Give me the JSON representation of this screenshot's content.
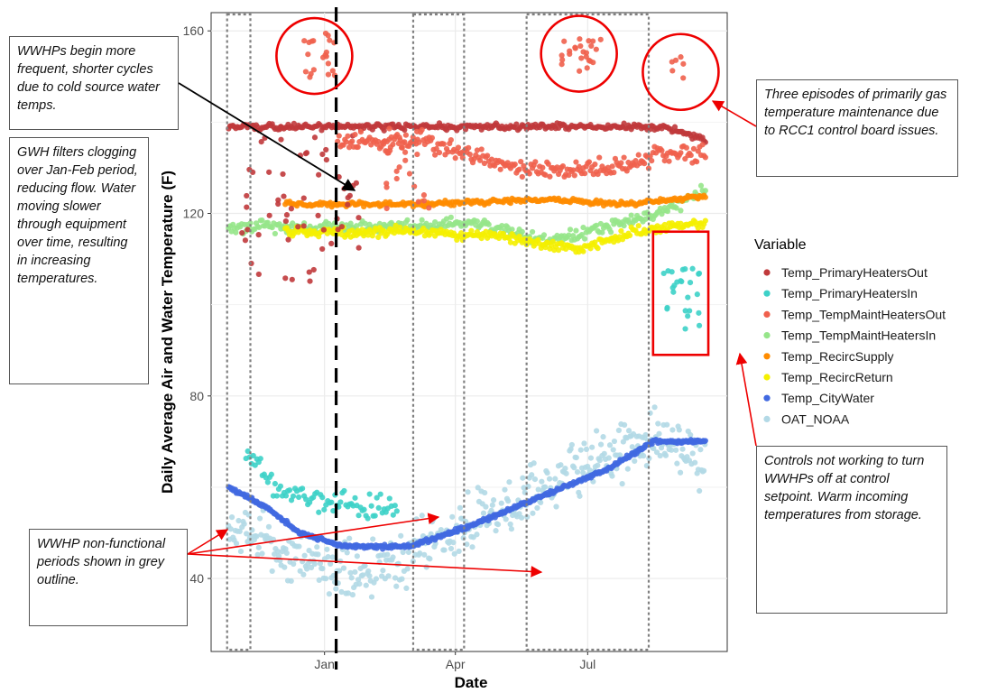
{
  "chart_data": {
    "type": "scatter",
    "title": "",
    "xlabel": "Date",
    "ylabel": "Daily Average Air and Water Temperature (F)",
    "x_range": [
      "2016-10-25",
      "2017-09-20"
    ],
    "xlim": [
      "2016-10-15",
      "2017-10-05"
    ],
    "ylim": [
      24,
      164
    ],
    "y_ticks": [
      40,
      80,
      120,
      160
    ],
    "x_ticks": [
      {
        "date": "2017-01-01",
        "label": "Jan"
      },
      {
        "date": "2017-04-01",
        "label": "Apr"
      },
      {
        "date": "2017-07-01",
        "label": "Jul"
      }
    ],
    "grid": true,
    "legend": {
      "title": "Variable",
      "position": "right",
      "entries": [
        {
          "name": "Temp_PrimaryHeatersOut",
          "color": "#c0393b"
        },
        {
          "name": "Temp_PrimaryHeatersIn",
          "color": "#3dd1c8"
        },
        {
          "name": "Temp_TempMaintHeatersOut",
          "color": "#f0604d"
        },
        {
          "name": "Temp_TempMaintHeatersIn",
          "color": "#96e58a"
        },
        {
          "name": "Temp_RecircSupply",
          "color": "#ff8c00"
        },
        {
          "name": "Temp_RecircReturn",
          "color": "#f5f000"
        },
        {
          "name": "Temp_CityWater",
          "color": "#4169e1"
        },
        {
          "name": "OAT_NOAA",
          "color": "#b3d9e6"
        }
      ]
    },
    "series": [
      {
        "name": "Temp_PrimaryHeatersOut",
        "keypoints": [
          [
            "2016-10-27",
            139
          ],
          [
            "2017-01-12",
            139
          ],
          [
            "2017-08-24",
            139
          ],
          [
            "2017-09-20",
            136
          ]
        ],
        "spread": 1,
        "density": 1,
        "extra_ranges": [
          [
            "2016-11-05",
            "2017-01-05",
            105,
            140
          ],
          [
            "2017-01-05",
            "2017-01-25",
            112,
            140
          ]
        ],
        "extra_density": 0.7
      },
      {
        "name": "Temp_PrimaryHeatersIn",
        "keypoints": [
          [
            "2016-11-08",
            68
          ],
          [
            "2016-12-01",
            60
          ],
          [
            "2017-01-01",
            56
          ],
          [
            "2017-02-20",
            55
          ]
        ],
        "spread": 4,
        "density": 0.8,
        "extra_ranges": [
          [
            "2017-08-22",
            "2017-09-16",
            94,
            108
          ]
        ],
        "extra_density": 1
      },
      {
        "name": "Temp_TempMaintHeatersOut",
        "keypoints": [
          [
            "2017-01-10",
            135
          ],
          [
            "2017-03-10",
            136
          ],
          [
            "2017-05-10",
            130
          ],
          [
            "2017-06-15",
            129
          ],
          [
            "2017-07-20",
            130
          ],
          [
            "2017-08-20",
            133
          ],
          [
            "2017-09-20",
            133
          ]
        ],
        "spread": 3,
        "density": 1,
        "extra_ranges": [
          [
            "2016-12-15",
            "2017-01-10",
            149,
            160
          ],
          [
            "2017-06-10",
            "2017-07-10",
            151,
            159
          ],
          [
            "2017-08-28",
            "2017-09-05",
            148,
            155
          ],
          [
            "2017-02-10",
            "2017-03-15",
            120,
            140
          ]
        ],
        "extra_density": 0.8
      },
      {
        "name": "Temp_TempMaintHeatersIn",
        "keypoints": [
          [
            "2016-10-27",
            117
          ],
          [
            "2016-12-01",
            117
          ],
          [
            "2017-02-01",
            117
          ],
          [
            "2017-04-15",
            118
          ],
          [
            "2017-06-01",
            114
          ],
          [
            "2017-07-15",
            117
          ],
          [
            "2017-08-25",
            121
          ],
          [
            "2017-09-20",
            125
          ]
        ],
        "spread": 2,
        "density": 1
      },
      {
        "name": "Temp_RecircSupply",
        "keypoints": [
          [
            "2016-12-05",
            122
          ],
          [
            "2017-03-01",
            122
          ],
          [
            "2017-06-01",
            123
          ],
          [
            "2017-08-01",
            122
          ],
          [
            "2017-09-20",
            124
          ]
        ],
        "spread": 0.8,
        "density": 1
      },
      {
        "name": "Temp_RecircReturn",
        "keypoints": [
          [
            "2016-12-05",
            116
          ],
          [
            "2017-03-01",
            116
          ],
          [
            "2017-05-01",
            115
          ],
          [
            "2017-06-25",
            112
          ],
          [
            "2017-08-01",
            116
          ],
          [
            "2017-09-20",
            118
          ]
        ],
        "spread": 1.6,
        "density": 1
      },
      {
        "name": "Temp_CityWater",
        "keypoints": [
          [
            "2016-10-27",
            60
          ],
          [
            "2016-11-20",
            56
          ],
          [
            "2016-12-15",
            50
          ],
          [
            "2017-01-15",
            47
          ],
          [
            "2017-03-01",
            47
          ],
          [
            "2017-04-15",
            52
          ],
          [
            "2017-05-15",
            56
          ],
          [
            "2017-06-15",
            60
          ],
          [
            "2017-07-15",
            64
          ],
          [
            "2017-08-15",
            70
          ],
          [
            "2017-09-20",
            70
          ]
        ],
        "spread": 0.6,
        "density": 1.5
      },
      {
        "name": "OAT_NOAA",
        "keypoints": [
          [
            "2016-10-27",
            52
          ],
          [
            "2016-12-01",
            45
          ],
          [
            "2017-01-01",
            42
          ],
          [
            "2017-02-15",
            43
          ],
          [
            "2017-04-01",
            50
          ],
          [
            "2017-05-15",
            58
          ],
          [
            "2017-07-01",
            65
          ],
          [
            "2017-08-15",
            70
          ],
          [
            "2017-09-20",
            66
          ]
        ],
        "spread": 9,
        "density": 1.3
      }
    ],
    "vertical_line": {
      "date": "2017-01-09",
      "style": "dashed"
    },
    "nonfunctional_periods": [
      [
        "2016-10-26",
        "2016-11-11"
      ],
      [
        "2017-03-03",
        "2017-04-07"
      ],
      [
        "2017-05-20",
        "2017-08-12"
      ]
    ],
    "circles": [
      {
        "date": "2016-12-25",
        "value": 154.5
      },
      {
        "date": "2017-06-25",
        "value": 155
      },
      {
        "date": "2017-09-03",
        "value": 151
      }
    ],
    "highlight_box": {
      "x": [
        "2017-08-15",
        "2017-09-22"
      ],
      "y": [
        89,
        116
      ]
    }
  },
  "annotations": {
    "wwhp_cycles": "WWHPs begin more frequent, shorter cycles due to cold source water temps.",
    "gwh_filters": "GWH filters clogging over Jan-Feb period, reducing flow. Water moving slower through equipment over time, resulting in increasing temperatures.",
    "three_episodes": "Three episodes of primarily gas temperature maintenance due to RCC1 control board issues.",
    "controls": "Controls not working to turn WWHPs off at control setpoint. Warm incoming temperatures from storage.",
    "nonfunctional": "WWHP non-functional periods shown in grey outline."
  },
  "colors": {
    "annotation_arrow": "#ee0000",
    "pointer_arrow": "#000000",
    "period_outline": "#808080",
    "grid": "#ebebeb"
  }
}
